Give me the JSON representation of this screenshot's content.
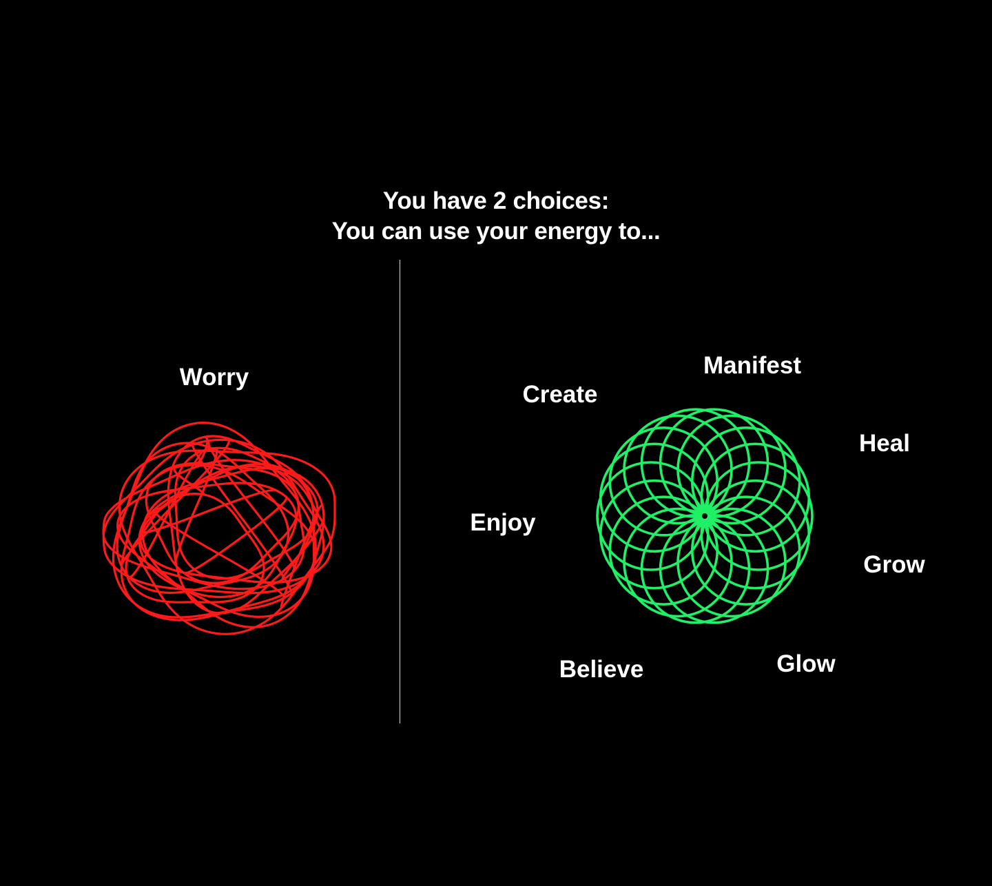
{
  "headline": {
    "line1": "You have 2 choices:",
    "line2": "You can use your energy to..."
  },
  "left_choice": {
    "label": "Worry",
    "color": "#ff1a1a",
    "icon": "tangled-scribble"
  },
  "right_choice": {
    "color": "#1ff066",
    "icon": "spirograph-flower",
    "words": [
      "Manifest",
      "Create",
      "Heal",
      "Enjoy",
      "Grow",
      "Believe",
      "Glow"
    ]
  },
  "colors": {
    "background": "#000000",
    "text": "#ffffff",
    "divider": "#d9d9d9"
  }
}
